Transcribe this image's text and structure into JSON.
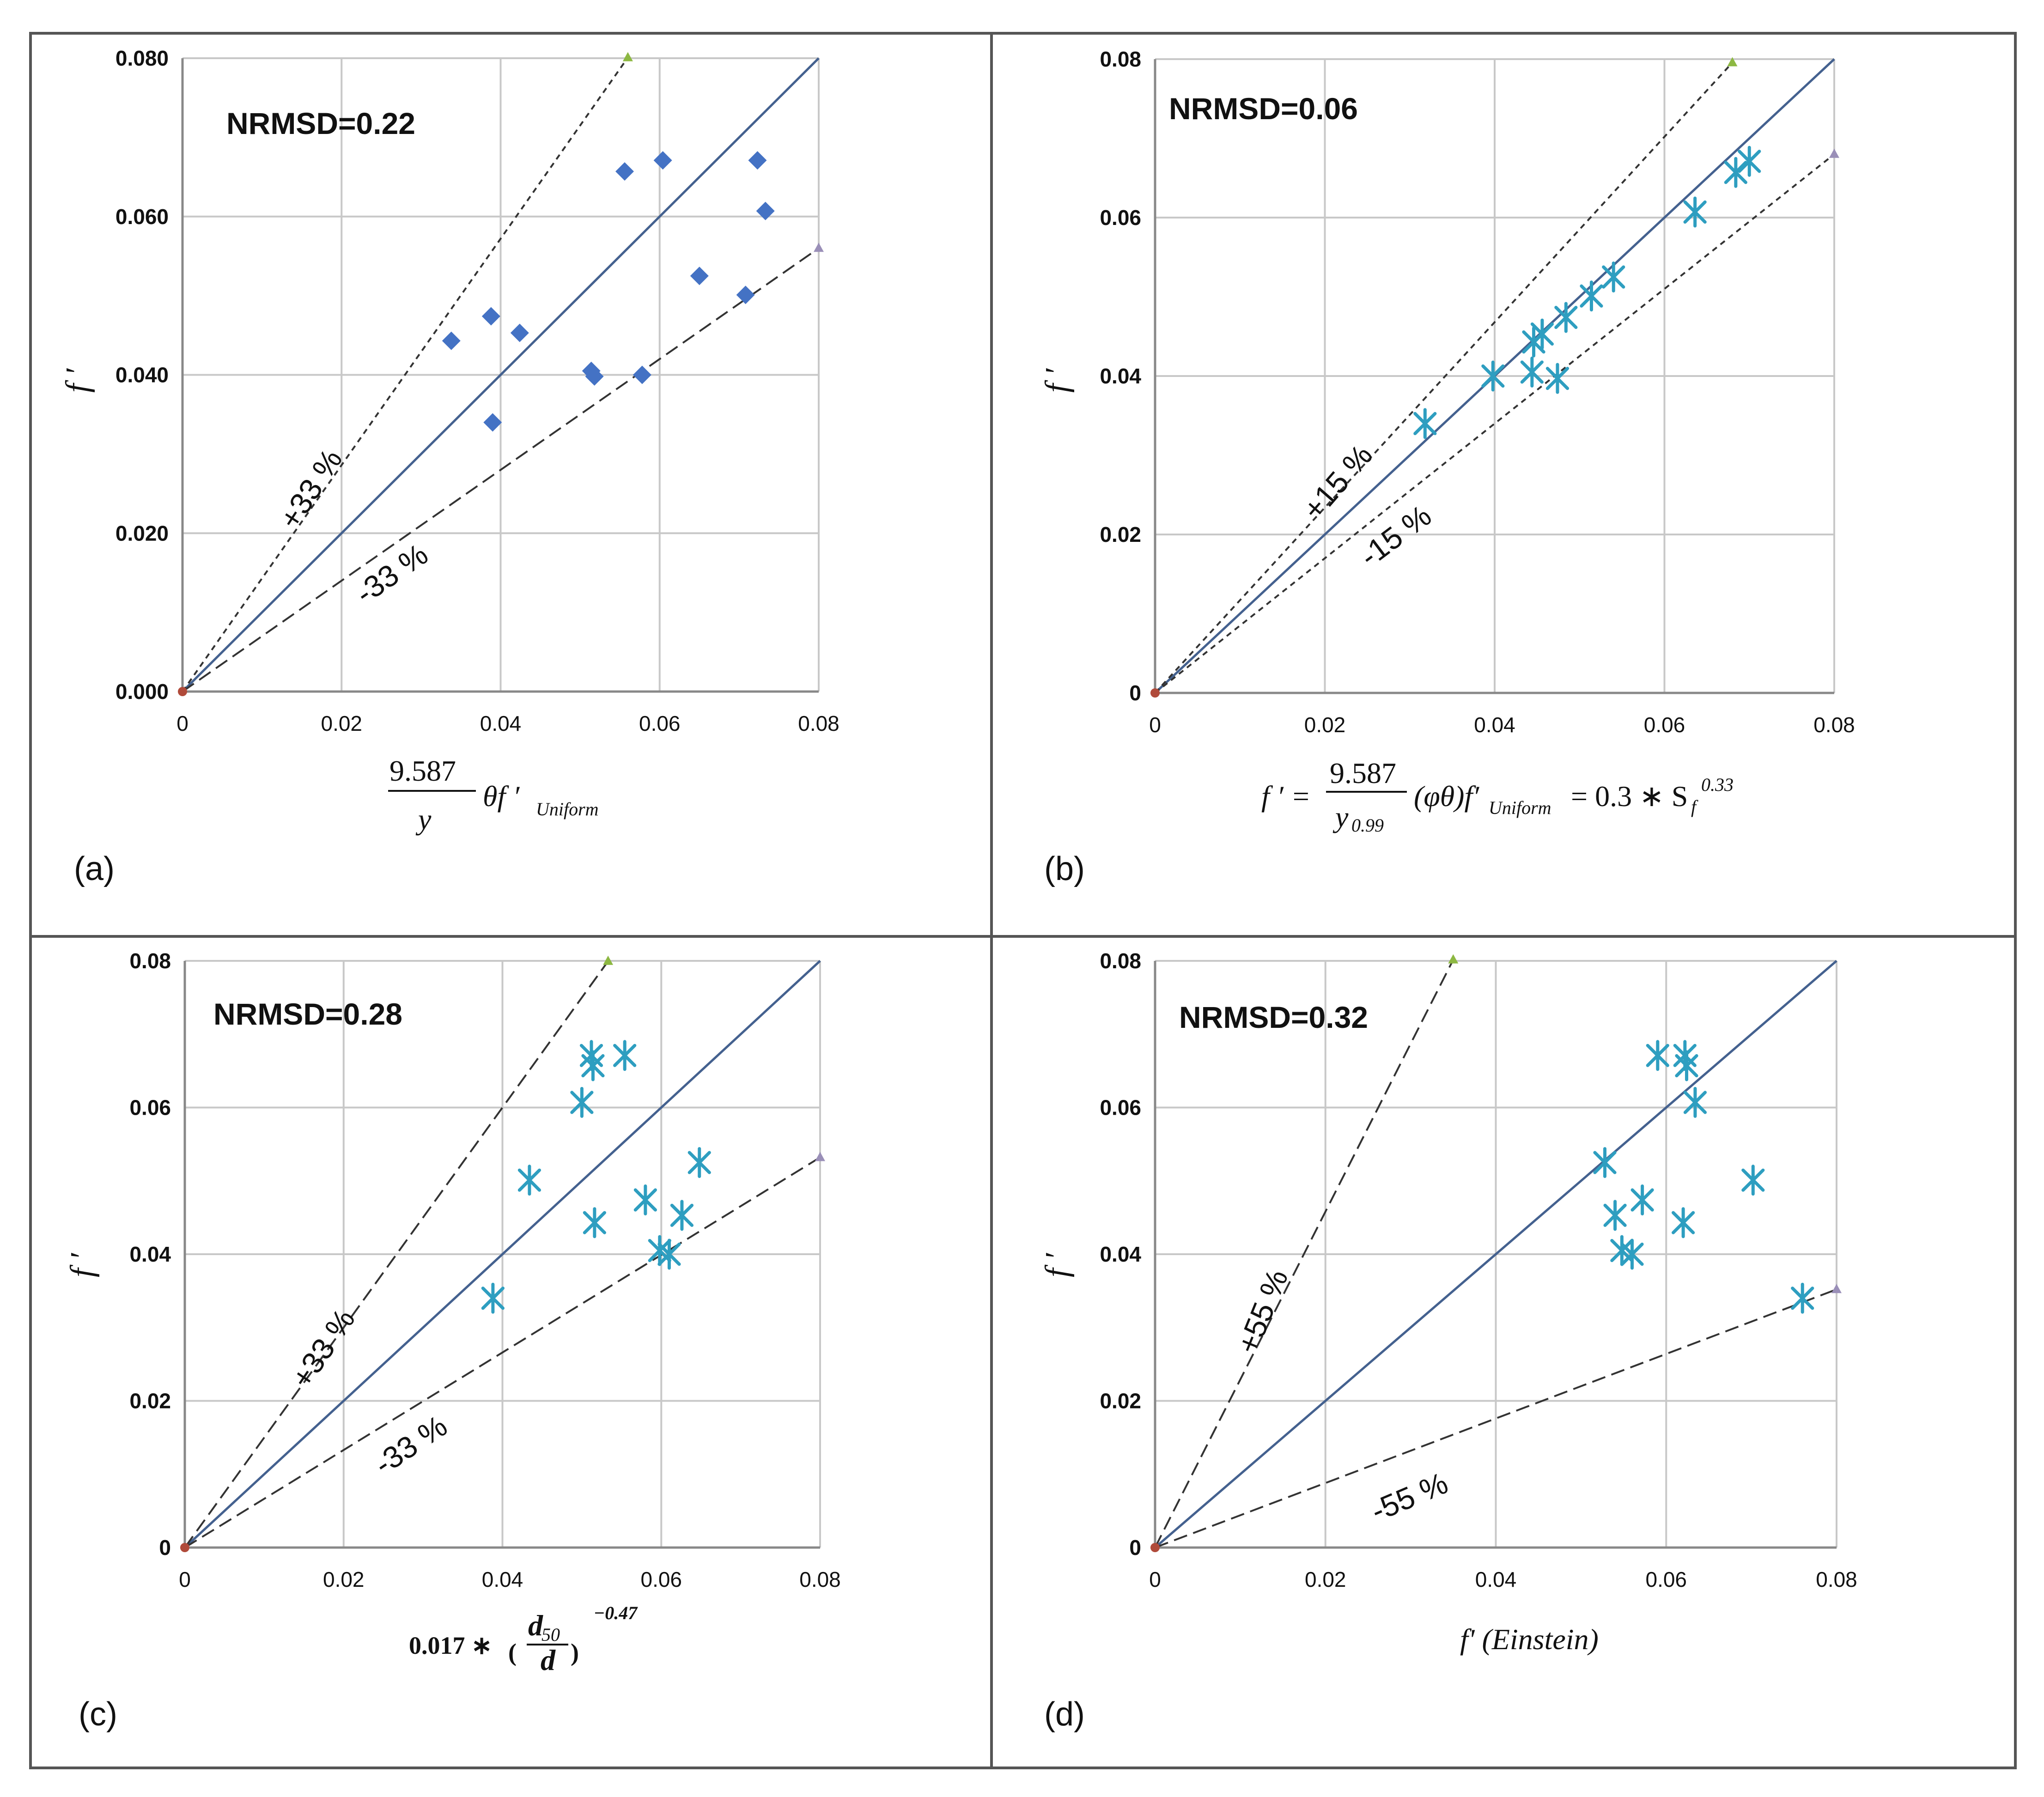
{
  "colors": {
    "diamond": "#4472c4",
    "star": "#2e9ec0",
    "line": "#44618f",
    "dashed": "#333333",
    "grid": "#c8c8c8",
    "frame": "#555555"
  },
  "chart_data": [
    {
      "panel": "(a)",
      "type": "scatter",
      "marker": "diamond",
      "title": "NRMSD=0.22",
      "ylabel": "f ′",
      "xlabel": {
        "num": "9.587",
        "den": "y",
        "rest": "θf ′",
        "sub": "Uniform"
      },
      "xlim": [
        0,
        0.08
      ],
      "ylim": [
        0,
        0.08
      ],
      "xticks": [
        "0",
        "0.02",
        "0.04",
        "0.06",
        "0.08"
      ],
      "yticks": [
        "0.000",
        "0.020",
        "0.040",
        "0.060",
        "0.080"
      ],
      "bands": [
        {
          "label": "+33 %",
          "slope": 1.43,
          "end_x": 0.056
        },
        {
          "label": "-33 %",
          "slope": 0.7,
          "end_x": 0.08
        }
      ],
      "points": [
        [
          0.0338,
          0.0443
        ],
        [
          0.0388,
          0.0474
        ],
        [
          0.039,
          0.034
        ],
        [
          0.0424,
          0.0453
        ],
        [
          0.0514,
          0.0405
        ],
        [
          0.0518,
          0.0398
        ],
        [
          0.0556,
          0.0657
        ],
        [
          0.0578,
          0.04
        ],
        [
          0.0604,
          0.0671
        ],
        [
          0.065,
          0.0525
        ],
        [
          0.0708,
          0.0501
        ],
        [
          0.0723,
          0.0671
        ],
        [
          0.0733,
          0.0607
        ]
      ]
    },
    {
      "panel": "(b)",
      "type": "scatter",
      "marker": "star",
      "title": "NRMSD=0.06",
      "ylabel": "f ′",
      "xlabel": {
        "pre": "f ′ =",
        "num": "9.587",
        "den": "y",
        "den_sub": "0.99",
        "rest": "(φθ)f′",
        "sub": "Uniform",
        "post": "= 0.3 ∗ S",
        "post_sub": "f",
        "post_sup": "0.33"
      },
      "xlim": [
        0,
        0.08
      ],
      "ylim": [
        0,
        0.08
      ],
      "xticks": [
        "0",
        "0.02",
        "0.04",
        "0.06",
        "0.08"
      ],
      "yticks": [
        "0",
        "0.02",
        "0.04",
        "0.06",
        "0.08"
      ],
      "bands": [
        {
          "label": "+15 %",
          "slope": 1.17,
          "end_x": 0.068
        },
        {
          "label": "-15 %",
          "slope": 0.85,
          "end_x": 0.08
        }
      ],
      "points": [
        [
          0.0318,
          0.034
        ],
        [
          0.0398,
          0.04
        ],
        [
          0.0444,
          0.0405
        ],
        [
          0.0446,
          0.0443
        ],
        [
          0.0456,
          0.0453
        ],
        [
          0.0474,
          0.0397
        ],
        [
          0.0484,
          0.0474
        ],
        [
          0.0514,
          0.0501
        ],
        [
          0.054,
          0.0525
        ],
        [
          0.0636,
          0.0607
        ],
        [
          0.0684,
          0.0657
        ],
        [
          0.07,
          0.0671
        ]
      ]
    },
    {
      "panel": "(c)",
      "type": "scatter",
      "marker": "star",
      "title": "NRMSD=0.28",
      "ylabel": "f ′",
      "xlabel": {
        "pre": "0.017 ∗",
        "num": "d",
        "num_sub": "50",
        "den": "d",
        "sup": "−0.47"
      },
      "xlim": [
        0,
        0.08
      ],
      "ylim": [
        0,
        0.08
      ],
      "xticks": [
        "0",
        "0.02",
        "0.04",
        "0.06",
        "0.08"
      ],
      "yticks": [
        "0",
        "0.02",
        "0.04",
        "0.06",
        "0.08"
      ],
      "bands": [
        {
          "label": "+33 %",
          "slope": 1.5,
          "end_x": 0.0533
        },
        {
          "label": "-33 %",
          "slope": 0.665,
          "end_x": 0.08
        }
      ],
      "points": [
        [
          0.0388,
          0.034
        ],
        [
          0.0434,
          0.0501
        ],
        [
          0.05,
          0.0607
        ],
        [
          0.0512,
          0.0671
        ],
        [
          0.0514,
          0.0657
        ],
        [
          0.0516,
          0.0443
        ],
        [
          0.0554,
          0.0671
        ],
        [
          0.058,
          0.0474
        ],
        [
          0.0598,
          0.0405
        ],
        [
          0.061,
          0.04
        ],
        [
          0.0626,
          0.0453
        ],
        [
          0.0648,
          0.0525
        ]
      ]
    },
    {
      "panel": "(d)",
      "type": "scatter",
      "marker": "star",
      "title": "NRMSD=0.32",
      "ylabel": "f ′",
      "xlabel": {
        "text": "f' (Einstein)"
      },
      "xlim": [
        0,
        0.08
      ],
      "ylim": [
        0,
        0.08
      ],
      "xticks": [
        "0",
        "0.02",
        "0.04",
        "0.06",
        "0.08"
      ],
      "yticks": [
        "0",
        "0.02",
        "0.04",
        "0.06",
        "0.08"
      ],
      "bands": [
        {
          "label": "+55 %",
          "slope": 2.29,
          "end_x": 0.035
        },
        {
          "label": "-55 %",
          "slope": 0.44,
          "end_x": 0.08
        }
      ],
      "points": [
        [
          0.0528,
          0.0525
        ],
        [
          0.054,
          0.0453
        ],
        [
          0.0548,
          0.0405
        ],
        [
          0.056,
          0.04
        ],
        [
          0.0572,
          0.0474
        ],
        [
          0.059,
          0.0671
        ],
        [
          0.062,
          0.0443
        ],
        [
          0.0622,
          0.0671
        ],
        [
          0.0624,
          0.0657
        ],
        [
          0.0634,
          0.0607
        ],
        [
          0.0702,
          0.0501
        ],
        [
          0.076,
          0.034
        ]
      ]
    }
  ]
}
